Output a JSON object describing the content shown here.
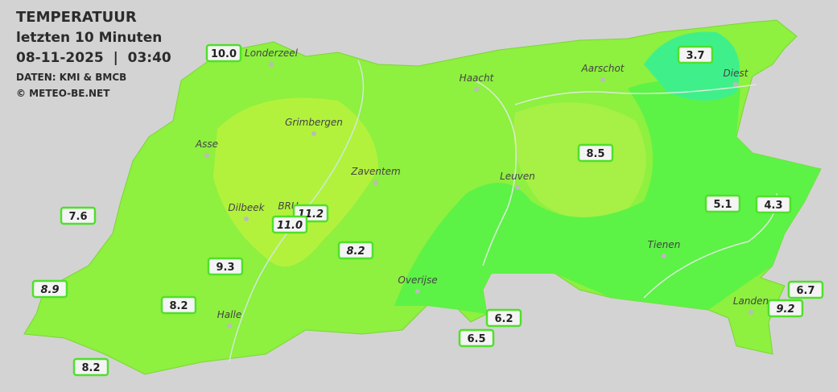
{
  "header": {
    "title": "TEMPERATUUR",
    "subtitle": "letzten 10 Minuten",
    "datetime": "08-11-2025  |  03:40",
    "source": "DATEN: KMI & BMCB",
    "copyright": "© METEO-BE.NET"
  },
  "cities": [
    "Londerzeel",
    "Haacht",
    "Aarschot",
    "Diest",
    "Grimbergen",
    "Asse",
    "Zaventem",
    "Leuven",
    "Dilbeek",
    "BRU",
    "Tienen",
    "Overijse",
    "Halle",
    "Landen"
  ],
  "stations": [
    "10.0",
    "3.7",
    "8.5",
    "7.6",
    "11.2",
    "11.0",
    "5.1",
    "4.3",
    "8.2",
    "9.3",
    "8.9",
    "8.2",
    "6.7",
    "9.2",
    "6.2",
    "6.5",
    "8.2"
  ]
}
